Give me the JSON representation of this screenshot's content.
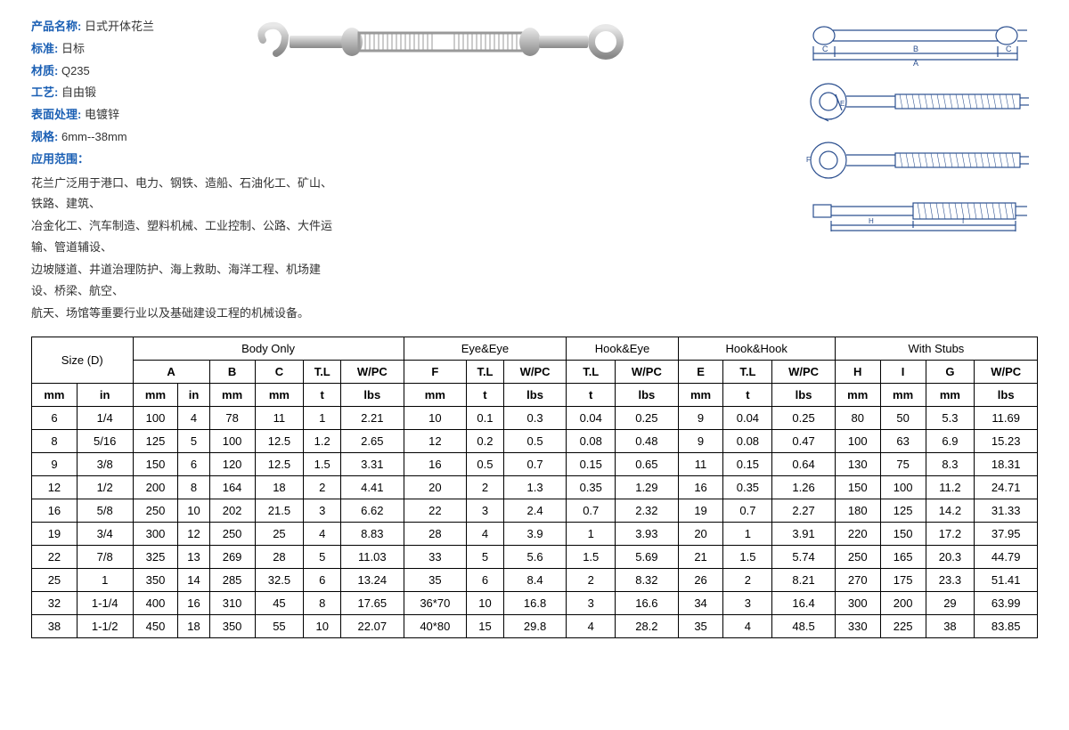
{
  "info": {
    "name_label": "产品名称:",
    "name_value": "日式开体花兰",
    "standard_label": "标准:",
    "standard_value": "日标",
    "material_label": "材质:",
    "material_value": "Q235",
    "process_label": "工艺:",
    "process_value": "自由锻",
    "surface_label": "表面处理:",
    "surface_value": "电镀锌",
    "spec_label": "规格:",
    "spec_value": "6mm--38mm",
    "scope_label": "应用范围：",
    "desc1": "花兰广泛用于港口、电力、钢铁、造船、石油化工、矿山、铁路、建筑、",
    "desc2": "冶金化工、汽车制造、塑料机械、工业控制、公路、大件运输、管道辅设、",
    "desc3": "边坡隧道、井道治理防护、海上救助、海洋工程、机场建设、桥梁、航空、",
    "desc4": "航天、场馆等重要行业以及基础建设工程的机械设备。"
  },
  "table": {
    "size_header": "Size (D)",
    "groups": [
      "Body Only",
      "Eye&Eye",
      "Hook&Eye",
      "Hook&Hook",
      "With Stubs"
    ],
    "subheaders": [
      "A",
      "B",
      "C",
      "T.L",
      "W/PC",
      "F",
      "T.L",
      "W/PC",
      "T.L",
      "W/PC",
      "E",
      "T.L",
      "W/PC",
      "H",
      "I",
      "G",
      "W/PC"
    ],
    "units": [
      "mm",
      "in",
      "mm",
      "in",
      "mm",
      "mm",
      "t",
      "lbs",
      "mm",
      "t",
      "lbs",
      "t",
      "lbs",
      "mm",
      "t",
      "lbs",
      "mm",
      "mm",
      "mm",
      "lbs"
    ],
    "rows": [
      [
        "6",
        "1/4",
        "100",
        "4",
        "78",
        "11",
        "1",
        "2.21",
        "10",
        "0.1",
        "0.3",
        "0.04",
        "0.25",
        "9",
        "0.04",
        "0.25",
        "80",
        "50",
        "5.3",
        "11.69"
      ],
      [
        "8",
        "5/16",
        "125",
        "5",
        "100",
        "12.5",
        "1.2",
        "2.65",
        "12",
        "0.2",
        "0.5",
        "0.08",
        "0.48",
        "9",
        "0.08",
        "0.47",
        "100",
        "63",
        "6.9",
        "15.23"
      ],
      [
        "9",
        "3/8",
        "150",
        "6",
        "120",
        "12.5",
        "1.5",
        "3.31",
        "16",
        "0.5",
        "0.7",
        "0.15",
        "0.65",
        "11",
        "0.15",
        "0.64",
        "130",
        "75",
        "8.3",
        "18.31"
      ],
      [
        "12",
        "1/2",
        "200",
        "8",
        "164",
        "18",
        "2",
        "4.41",
        "20",
        "2",
        "1.3",
        "0.35",
        "1.29",
        "16",
        "0.35",
        "1.26",
        "150",
        "100",
        "11.2",
        "24.71"
      ],
      [
        "16",
        "5/8",
        "250",
        "10",
        "202",
        "21.5",
        "3",
        "6.62",
        "22",
        "3",
        "2.4",
        "0.7",
        "2.32",
        "19",
        "0.7",
        "2.27",
        "180",
        "125",
        "14.2",
        "31.33"
      ],
      [
        "19",
        "3/4",
        "300",
        "12",
        "250",
        "25",
        "4",
        "8.83",
        "28",
        "4",
        "3.9",
        "1",
        "3.93",
        "20",
        "1",
        "3.91",
        "220",
        "150",
        "17.2",
        "37.95"
      ],
      [
        "22",
        "7/8",
        "325",
        "13",
        "269",
        "28",
        "5",
        "11.03",
        "33",
        "5",
        "5.6",
        "1.5",
        "5.69",
        "21",
        "1.5",
        "5.74",
        "250",
        "165",
        "20.3",
        "44.79"
      ],
      [
        "25",
        "1",
        "350",
        "14",
        "285",
        "32.5",
        "6",
        "13.24",
        "35",
        "6",
        "8.4",
        "2",
        "8.32",
        "26",
        "2",
        "8.21",
        "270",
        "175",
        "23.3",
        "51.41"
      ],
      [
        "32",
        "1-1/4",
        "400",
        "16",
        "310",
        "45",
        "8",
        "17.65",
        "36*70",
        "10",
        "16.8",
        "3",
        "16.6",
        "34",
        "3",
        "16.4",
        "300",
        "200",
        "29",
        "63.99"
      ],
      [
        "38",
        "1-1/2",
        "450",
        "18",
        "350",
        "55",
        "10",
        "22.07",
        "40*80",
        "15",
        "29.8",
        "4",
        "28.2",
        "35",
        "4",
        "48.5",
        "330",
        "225",
        "38",
        "83.85"
      ]
    ]
  },
  "colors": {
    "label_blue": "#1a5fb4",
    "diagram_blue": "#2b4f8f",
    "border": "#000000"
  }
}
